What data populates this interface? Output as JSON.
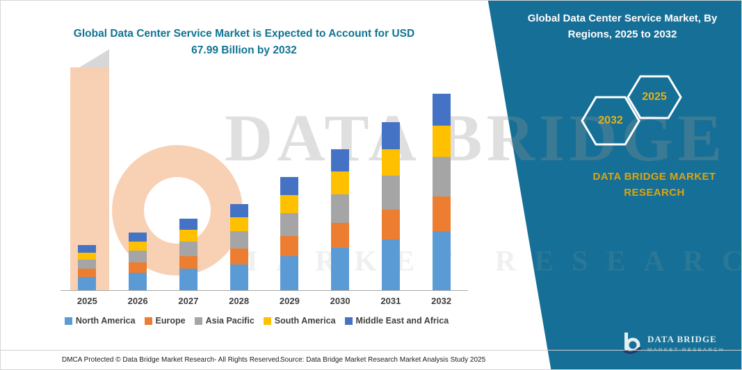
{
  "colors": {
    "accent_teal": "#156F96",
    "gold": "#E6B217",
    "title_teal": "#0F7492"
  },
  "main_title": {
    "line1": "Global Data Center Service Market is Expected to Account for USD",
    "line2": "67.99 Billion by 2032"
  },
  "banner": {
    "heading": "Global Data Center Service Market, By Regions, 2025 to 2032",
    "hex_left_year": "2032",
    "hex_right_year": "2025",
    "brand_line1": "DATA BRIDGE MARKET",
    "brand_line2": "RESEARCH",
    "logo_name": "DATA BRIDGE",
    "logo_sub": "MARKET RESEARCH"
  },
  "watermark": {
    "text": "DATA BRIDGE",
    "subtext": "MARKET RESEARCH"
  },
  "chart_data": {
    "type": "bar",
    "stacked": true,
    "title": "Global Data Center Service Market is Expected to Account for USD 67.99 Billion by 2032",
    "xlabel": "",
    "ylabel": "USD Billion (axis not shown; values estimated from bar heights, 2032 total = 67.99)",
    "grid": false,
    "legend_position": "bottom",
    "categories": [
      "2025",
      "2026",
      "2027",
      "2028",
      "2029",
      "2030",
      "2031",
      "2032"
    ],
    "series": [
      {
        "name": "North America",
        "color": "#5B9BD5",
        "values": [
          4.7,
          6.1,
          7.4,
          9.0,
          11.8,
          14.7,
          17.5,
          20.4
        ]
      },
      {
        "name": "Europe",
        "color": "#ED7D31",
        "values": [
          2.8,
          3.6,
          4.5,
          5.4,
          7.1,
          8.8,
          10.5,
          12.2
        ]
      },
      {
        "name": "Asia Pacific",
        "color": "#A5A5A5",
        "values": [
          3.1,
          4.0,
          5.0,
          6.0,
          7.9,
          9.8,
          11.7,
          13.6
        ]
      },
      {
        "name": "South America",
        "color": "#FFC000",
        "values": [
          2.5,
          3.2,
          4.0,
          4.8,
          6.3,
          7.8,
          9.3,
          10.9
        ]
      },
      {
        "name": "Middle East and Africa",
        "color": "#4472C4",
        "values": [
          2.5,
          3.2,
          4.0,
          4.8,
          6.3,
          7.8,
          9.3,
          11.0
        ]
      }
    ],
    "totals_estimated": [
      15.6,
      20.1,
      24.9,
      30.0,
      39.4,
      48.9,
      58.3,
      68.1
    ]
  },
  "footer": {
    "left": "DMCA Protected © Data Bridge Market Research-  All Rights Reserved.",
    "source": "Source: Data Bridge Market Research  Market Analysis Study 2025"
  }
}
